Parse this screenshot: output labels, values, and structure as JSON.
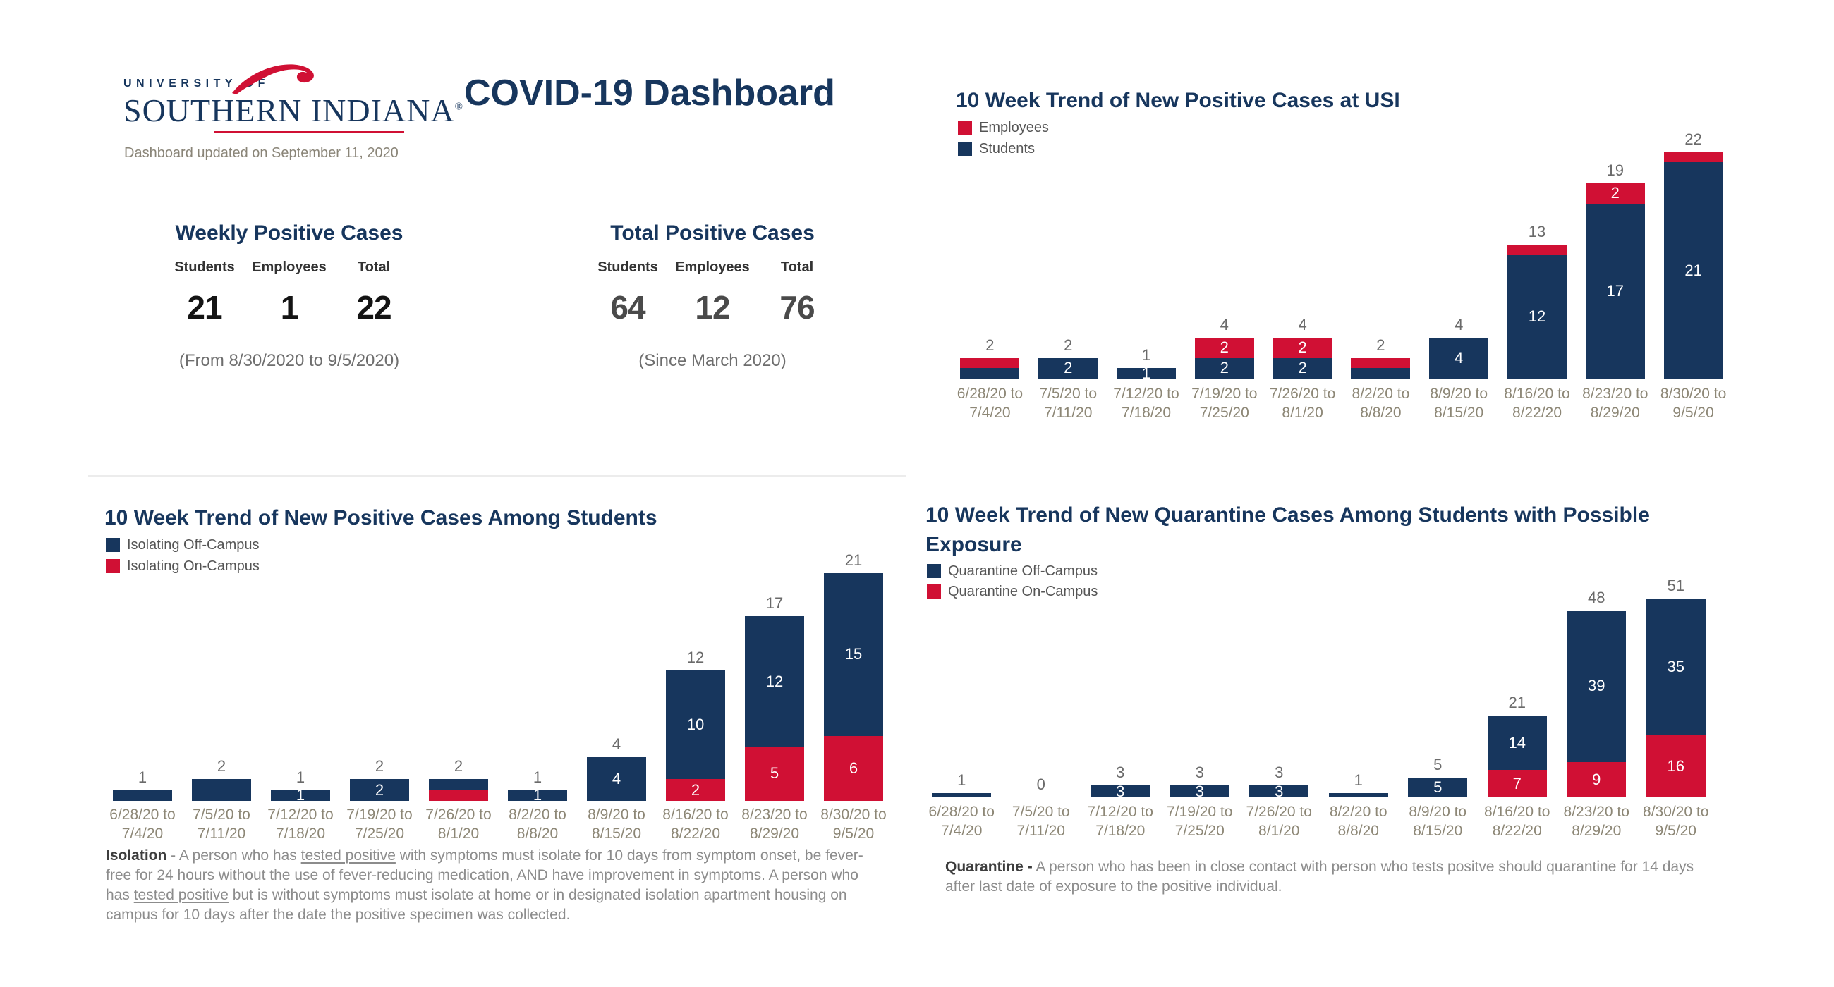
{
  "header": {
    "logo": {
      "line1": "UNIVERSITY OF",
      "line2": "SOUTHERN INDIANA",
      "registered": "®"
    },
    "title": "COVID-19 Dashboard",
    "updated": "Dashboard updated on September 11, 2020"
  },
  "summary_cards": [
    {
      "title": "Weekly Positive Cases",
      "columns": [
        {
          "label": "Students",
          "value": "21"
        },
        {
          "label": "Employees",
          "value": "1"
        },
        {
          "label": "Total",
          "value": "22"
        }
      ],
      "caption": "(From 8/30/2020 to 9/5/2020)"
    },
    {
      "title": "Total Positive Cases",
      "columns": [
        {
          "label": "Students",
          "value": "64"
        },
        {
          "label": "Employees",
          "value": "12"
        },
        {
          "label": "Total",
          "value": "76"
        }
      ],
      "caption": "(Since March 2020)"
    }
  ],
  "colors": {
    "navy": "#17365d",
    "red": "#d01034",
    "total_label": "#6a6a6a",
    "axis_label": "#8d8776",
    "divider": "#ececec"
  },
  "chart_data": [
    {
      "id": "usi",
      "type": "bar",
      "stacked": true,
      "title_lines": [
        "10 Week Trend of New Positive Cases at USI"
      ],
      "legend": [
        {
          "label": "Employees",
          "color": "red"
        },
        {
          "label": "Students",
          "color": "navy"
        }
      ],
      "categories": [
        [
          "6/28/20 to",
          "7/4/20"
        ],
        [
          "7/5/20 to",
          "7/11/20"
        ],
        [
          "7/12/20 to",
          "7/18/20"
        ],
        [
          "7/19/20 to",
          "7/25/20"
        ],
        [
          "7/26/20 to",
          "8/1/20"
        ],
        [
          "8/2/20 to",
          "8/8/20"
        ],
        [
          "8/9/20 to",
          "8/15/20"
        ],
        [
          "8/16/20 to",
          "8/22/20"
        ],
        [
          "8/23/20 to",
          "8/29/20"
        ],
        [
          "8/30/20 to",
          "9/5/20"
        ]
      ],
      "series": [
        {
          "name": "Students",
          "color": "navy",
          "values": [
            1,
            2,
            1,
            2,
            2,
            1,
            4,
            12,
            17,
            21
          ],
          "labels": [
            "",
            "2",
            "1",
            "2",
            "2",
            "",
            "4",
            "12",
            "17",
            "21"
          ]
        },
        {
          "name": "Employees",
          "color": "red",
          "values": [
            1,
            0,
            0,
            2,
            2,
            1,
            0,
            1,
            2,
            1
          ],
          "labels": [
            "",
            "",
            "",
            "2",
            "2",
            "",
            "",
            "",
            "2",
            ""
          ]
        }
      ],
      "totals": [
        "2",
        "2",
        "1",
        "4",
        "4",
        "2",
        "4",
        "13",
        "19",
        "22"
      ],
      "ylim": [
        0,
        22
      ],
      "legend_position": "top-left",
      "grid": false
    },
    {
      "id": "students",
      "type": "bar",
      "stacked": true,
      "title_lines": [
        "10 Week Trend of New Positive Cases Among Students"
      ],
      "legend": [
        {
          "label": "Isolating Off-Campus",
          "color": "navy"
        },
        {
          "label": "Isolating On-Campus",
          "color": "red"
        }
      ],
      "categories": [
        [
          "6/28/20 to",
          "7/4/20"
        ],
        [
          "7/5/20 to",
          "7/11/20"
        ],
        [
          "7/12/20 to",
          "7/18/20"
        ],
        [
          "7/19/20 to",
          "7/25/20"
        ],
        [
          "7/26/20 to",
          "8/1/20"
        ],
        [
          "8/2/20 to",
          "8/8/20"
        ],
        [
          "8/9/20 to",
          "8/15/20"
        ],
        [
          "8/16/20 to",
          "8/22/20"
        ],
        [
          "8/23/20 to",
          "8/29/20"
        ],
        [
          "8/30/20 to",
          "9/5/20"
        ]
      ],
      "series": [
        {
          "name": "Isolating On-Campus",
          "color": "red",
          "values": [
            0,
            0,
            0,
            0,
            1,
            0,
            0,
            2,
            5,
            6
          ],
          "labels": [
            "",
            "",
            "",
            "",
            "",
            "",
            "",
            "2",
            "5",
            "6"
          ]
        },
        {
          "name": "Isolating Off-Campus",
          "color": "navy",
          "values": [
            1,
            2,
            1,
            2,
            1,
            1,
            4,
            10,
            12,
            15
          ],
          "labels": [
            "",
            "",
            "1",
            "2",
            "",
            "1",
            "4",
            "10",
            "12",
            "15"
          ]
        }
      ],
      "totals": [
        "1",
        "2",
        "1",
        "2",
        "2",
        "1",
        "4",
        "12",
        "17",
        "21"
      ],
      "ylim": [
        0,
        21
      ],
      "legend_position": "top-left",
      "grid": false
    },
    {
      "id": "quarantine",
      "type": "bar",
      "stacked": true,
      "title_lines": [
        "10 Week Trend of New Quarantine Cases Among Students with Possible",
        "Exposure"
      ],
      "legend": [
        {
          "label": "Quarantine Off-Campus",
          "color": "navy"
        },
        {
          "label": "Quarantine On-Campus",
          "color": "red"
        }
      ],
      "categories": [
        [
          "6/28/20 to",
          "7/4/20"
        ],
        [
          "7/5/20 to",
          "7/11/20"
        ],
        [
          "7/12/20 to",
          "7/18/20"
        ],
        [
          "7/19/20 to",
          "7/25/20"
        ],
        [
          "7/26/20 to",
          "8/1/20"
        ],
        [
          "8/2/20 to",
          "8/8/20"
        ],
        [
          "8/9/20 to",
          "8/15/20"
        ],
        [
          "8/16/20 to",
          "8/22/20"
        ],
        [
          "8/23/20 to",
          "8/29/20"
        ],
        [
          "8/30/20 to",
          "9/5/20"
        ]
      ],
      "series": [
        {
          "name": "Quarantine On-Campus",
          "color": "red",
          "values": [
            0,
            0,
            0,
            0,
            0,
            0,
            0,
            7,
            9,
            16
          ],
          "labels": [
            "",
            "",
            "",
            "",
            "",
            "",
            "",
            "7",
            "9",
            "16"
          ]
        },
        {
          "name": "Quarantine Off-Campus",
          "color": "navy",
          "values": [
            1,
            0,
            3,
            3,
            3,
            1,
            5,
            14,
            39,
            35
          ],
          "labels": [
            "",
            "",
            "3",
            "3",
            "3",
            "",
            "5",
            "14",
            "39",
            "35"
          ]
        }
      ],
      "totals": [
        "1",
        "0",
        "3",
        "3",
        "3",
        "1",
        "5",
        "21",
        "48",
        "51"
      ],
      "ylim": [
        0,
        51
      ],
      "legend_position": "top-left",
      "grid": false
    }
  ],
  "definitions": {
    "isolation": {
      "runs": [
        {
          "text": "Isolation",
          "bold": true
        },
        {
          "text": "  - A person who has "
        },
        {
          "text": "tested positive",
          "underline": true
        },
        {
          "text": " with symptoms must isolate for 10 days from symptom onset, be fever-free for 24 hours without the use of fever-reducing medication, AND have improvement in symptoms. A person who has "
        },
        {
          "text": "tested positive",
          "underline": true
        },
        {
          "text": " but is without symptoms must isolate at home or in designated isolation apartment housing on campus for 10 days after the date the positive specimen was collected."
        }
      ]
    },
    "quarantine": {
      "runs": [
        {
          "text": "Quarantine -",
          "bold": true
        },
        {
          "text": " A person who has been in close  contact with person who tests positve should quarantine for 14 days after last date of exposure to the positive individual."
        }
      ]
    }
  }
}
